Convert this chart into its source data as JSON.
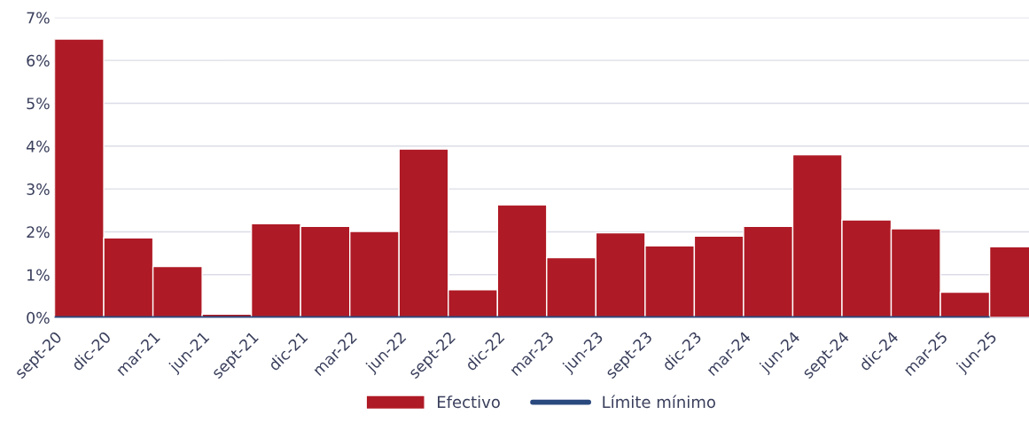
{
  "chart_data": {
    "type": "bar",
    "categories": [
      "sept-20",
      "dic-20",
      "mar-21",
      "jun-21",
      "sept-21",
      "dic-21",
      "mar-22",
      "jun-22",
      "sept-22",
      "dic-22",
      "mar-23",
      "jun-23",
      "sept-23",
      "dic-23",
      "mar-24",
      "jun-24",
      "sept-24",
      "dic-24",
      "mar-25",
      "jun-25"
    ],
    "series": [
      {
        "name": "Efectivo",
        "color": "#ae1a25",
        "values": [
          6.5,
          1.86,
          1.19,
          0.08,
          2.19,
          2.13,
          2.01,
          3.93,
          0.65,
          2.63,
          1.4,
          1.98,
          1.67,
          1.9,
          2.13,
          3.8,
          2.28,
          2.07,
          0.59,
          1.65
        ]
      },
      {
        "name": "Límite mínimo",
        "type": "line",
        "color": "#2a4a7f",
        "values": [
          0,
          0,
          0,
          0,
          0,
          0,
          0,
          0,
          0,
          0,
          0,
          0,
          0,
          0,
          0,
          0,
          0,
          0,
          0,
          0
        ]
      }
    ],
    "ylim": [
      0,
      7
    ],
    "yticks": [
      {
        "value": 0,
        "label": "0%"
      },
      {
        "value": 1,
        "label": "1%"
      },
      {
        "value": 2,
        "label": "2%"
      },
      {
        "value": 3,
        "label": "3%"
      },
      {
        "value": 4,
        "label": "4%"
      },
      {
        "value": 5,
        "label": "5%"
      },
      {
        "value": 6,
        "label": "6%"
      },
      {
        "value": 7,
        "label": "7%"
      }
    ],
    "grid": "y",
    "legend": "bottom"
  }
}
